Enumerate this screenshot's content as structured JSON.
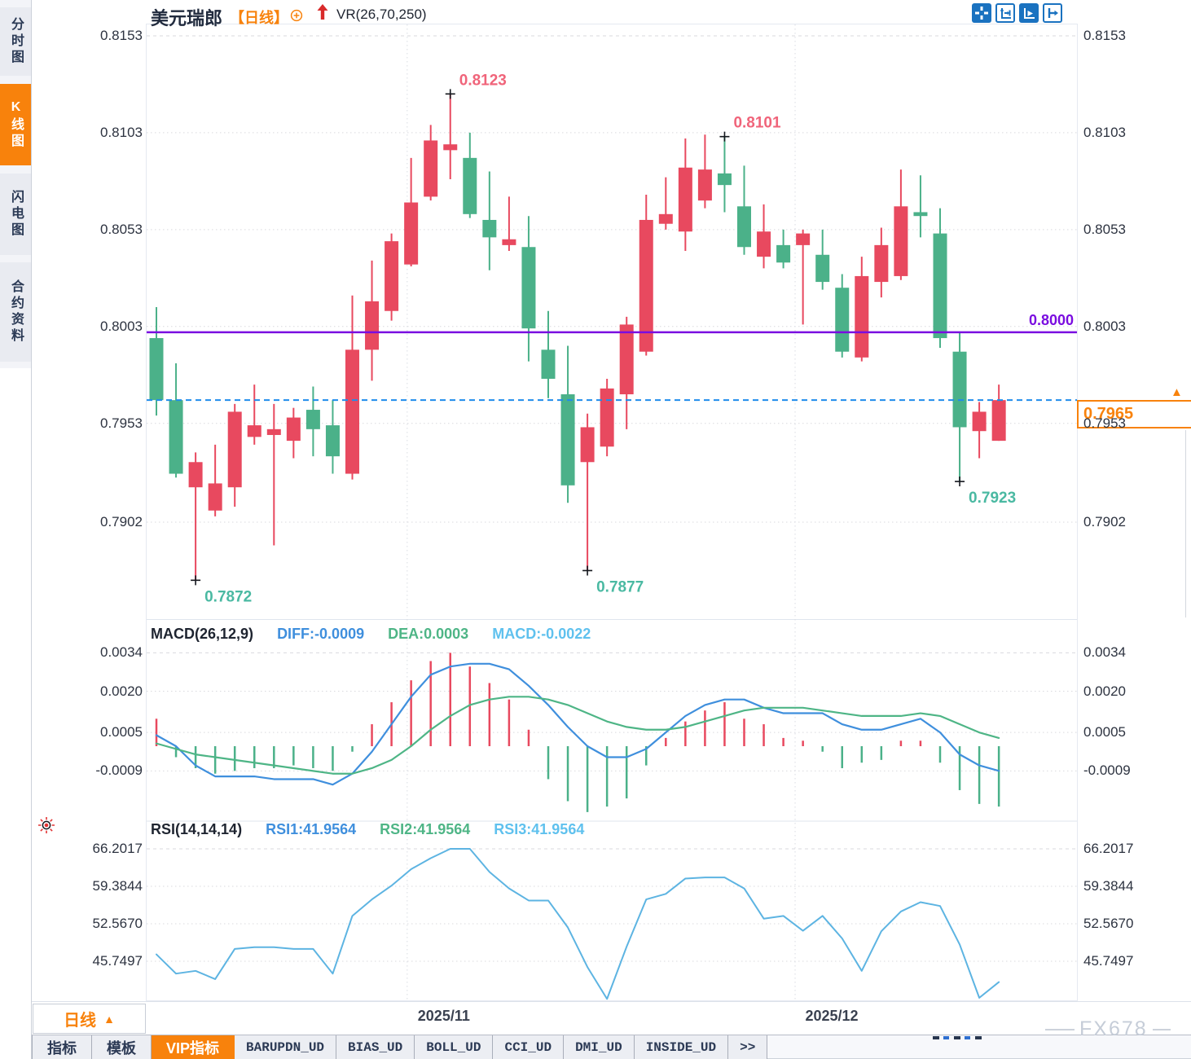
{
  "app": {
    "watermark": "FX678"
  },
  "sidebar": {
    "items": [
      {
        "id": "time-share-chart",
        "label": "分时图",
        "active": false
      },
      {
        "id": "kline-chart",
        "label": "K线图",
        "active": true
      },
      {
        "id": "lightning-chart",
        "label": "闪电图",
        "active": false
      },
      {
        "id": "contract-info",
        "label": "合约资料",
        "active": false
      }
    ]
  },
  "header": {
    "symbol": "美元瑞郎",
    "period_tag": "【日线】",
    "indicator_label": "VR(26,70,250)"
  },
  "toolbar_icons": [
    "move-crosshair",
    "axis-scale",
    "axis-play",
    "pan-right"
  ],
  "price_panel": {
    "y_ticks": [
      "0.8153",
      "0.8103",
      "0.8053",
      "0.8003",
      "0.7953",
      "0.7902"
    ],
    "hline_label": "0.8000",
    "current_price": "0.7965"
  },
  "macd_panel": {
    "title": "MACD(26,12,9)",
    "diff_label": "DIFF:-0.0009",
    "dea_label": "DEA:0.0003",
    "macd_label": "MACD:-0.0022",
    "y_ticks": [
      "0.0034",
      "0.0020",
      "0.0005",
      "-0.0009"
    ]
  },
  "rsi_panel": {
    "title": "RSI(14,14,14)",
    "rsi1_label": "RSI1:41.9564",
    "rsi2_label": "RSI2:41.9564",
    "rsi3_label": "RSI3:41.9564",
    "y_ticks": [
      "66.2017",
      "59.3844",
      "52.5670",
      "45.7497"
    ]
  },
  "timeline": {
    "period_label": "日线",
    "months": [
      "2025/11",
      "2025/12"
    ]
  },
  "bottom_tabs": {
    "items": [
      {
        "label": "指标",
        "active": false
      },
      {
        "label": "模板",
        "active": false
      },
      {
        "label": "VIP指标",
        "active": true
      },
      {
        "label": "BARUPDN_UD",
        "active": false
      },
      {
        "label": "BIAS_UD",
        "active": false
      },
      {
        "label": "BOLL_UD",
        "active": false
      },
      {
        "label": "CCI_UD",
        "active": false
      },
      {
        "label": "DMI_UD",
        "active": false
      },
      {
        "label": "INSIDE_UD",
        "active": false
      },
      {
        "label": ">>",
        "active": false
      }
    ]
  },
  "colors": {
    "up": "#e8495f",
    "down": "#4bb189",
    "purple_line": "#7a0ce0",
    "dashed_line": "#1f8ceb",
    "accent_orange": "#f8820c",
    "diff_line": "#3f8fdd",
    "dea_line": "#4eb586",
    "rsi_line": "#5db4e2",
    "marker_high": "#f0647a",
    "marker_low": "#4ab9a2",
    "toolbar_blue": "#1a72c0"
  },
  "chart_data": [
    {
      "type": "candlestick",
      "title": "美元瑞郎 日线",
      "convention": "red=up, green=down (CN convention)",
      "y_ticks": [
        0.8153,
        0.8103,
        0.8053,
        0.8003,
        0.7953,
        0.7902
      ],
      "hlines": [
        {
          "value": 0.8,
          "style": "solid",
          "color": "#7a0ce0",
          "label": "0.8000"
        },
        {
          "value": 0.7965,
          "style": "dashed",
          "color": "#1f8ceb",
          "label": "0.7965"
        }
      ],
      "x_month_gridlines": [
        {
          "label": "2025/11",
          "index": 12.8
        },
        {
          "label": "2025/12",
          "index": 32.6
        }
      ],
      "markers": [
        {
          "index": 2,
          "price": 0.7872,
          "kind": "low",
          "label": "0.7872"
        },
        {
          "index": 15,
          "price": 0.8123,
          "kind": "high",
          "label": "0.8123"
        },
        {
          "index": 22,
          "price": 0.7877,
          "kind": "low",
          "label": "0.7877"
        },
        {
          "index": 29,
          "price": 0.8101,
          "kind": "high",
          "label": "0.8101"
        },
        {
          "index": 41,
          "price": 0.7923,
          "kind": "low",
          "label": "0.7923"
        }
      ],
      "ohlc": [
        [
          0.7997,
          0.8013,
          0.7957,
          0.7965
        ],
        [
          0.7965,
          0.7984,
          0.7925,
          0.7927
        ],
        [
          0.792,
          0.7938,
          0.7872,
          0.7933
        ],
        [
          0.7908,
          0.7942,
          0.7905,
          0.7922
        ],
        [
          0.792,
          0.7963,
          0.791,
          0.7959
        ],
        [
          0.7946,
          0.7973,
          0.7942,
          0.7952
        ],
        [
          0.7947,
          0.7963,
          0.789,
          0.795
        ],
        [
          0.7944,
          0.7961,
          0.7935,
          0.7956
        ],
        [
          0.796,
          0.7972,
          0.7936,
          0.795
        ],
        [
          0.7952,
          0.7965,
          0.7927,
          0.7936
        ],
        [
          0.7927,
          0.8019,
          0.7924,
          0.7991
        ],
        [
          0.7991,
          0.8037,
          0.7975,
          0.8016
        ],
        [
          0.8011,
          0.8051,
          0.8006,
          0.8047
        ],
        [
          0.8035,
          0.809,
          0.8034,
          0.8067
        ],
        [
          0.807,
          0.8107,
          0.8068,
          0.8099
        ],
        [
          0.8094,
          0.8123,
          0.8079,
          0.8097
        ],
        [
          0.809,
          0.8103,
          0.8059,
          0.8061
        ],
        [
          0.8058,
          0.8083,
          0.8032,
          0.8049
        ],
        [
          0.8045,
          0.807,
          0.8042,
          0.8048
        ],
        [
          0.8044,
          0.806,
          0.7985,
          0.8002
        ],
        [
          0.7991,
          0.8011,
          0.7966,
          0.7976
        ],
        [
          0.7968,
          0.7993,
          0.7912,
          0.7921
        ],
        [
          0.7933,
          0.7958,
          0.7877,
          0.7951
        ],
        [
          0.7941,
          0.7976,
          0.7936,
          0.7971
        ],
        [
          0.7968,
          0.8008,
          0.795,
          0.8004
        ],
        [
          0.799,
          0.8071,
          0.7988,
          0.8058
        ],
        [
          0.8056,
          0.808,
          0.8053,
          0.8061
        ],
        [
          0.8052,
          0.81,
          0.8042,
          0.8085
        ],
        [
          0.8068,
          0.8102,
          0.8064,
          0.8084
        ],
        [
          0.8082,
          0.8101,
          0.8062,
          0.8076
        ],
        [
          0.8065,
          0.8086,
          0.804,
          0.8044
        ],
        [
          0.8039,
          0.8066,
          0.8033,
          0.8052
        ],
        [
          0.8045,
          0.8053,
          0.8033,
          0.8036
        ],
        [
          0.8045,
          0.8053,
          0.8004,
          0.8051
        ],
        [
          0.804,
          0.8053,
          0.8022,
          0.8026
        ],
        [
          0.8023,
          0.803,
          0.7987,
          0.799
        ],
        [
          0.7987,
          0.8039,
          0.7985,
          0.8029
        ],
        [
          0.8026,
          0.8054,
          0.8018,
          0.8045
        ],
        [
          0.8029,
          0.8084,
          0.8027,
          0.8065
        ],
        [
          0.8062,
          0.8081,
          0.8049,
          0.806
        ],
        [
          0.8051,
          0.8064,
          0.7992,
          0.7997
        ],
        [
          0.799,
          0.8,
          0.7923,
          0.7951
        ],
        [
          0.7949,
          0.7964,
          0.7935,
          0.7959
        ],
        [
          0.7944,
          0.7973,
          0.7944,
          0.7965
        ]
      ]
    },
    {
      "type": "macd",
      "y_ticks": [
        0.0034,
        0.002,
        0.0005,
        -0.0009
      ],
      "histogram": [
        0.001,
        -0.0004,
        -0.0008,
        -0.001,
        -0.0009,
        -0.0008,
        -0.0008,
        -0.0007,
        -0.0008,
        -0.0009,
        -0.0002,
        0.0008,
        0.0016,
        0.0024,
        0.0031,
        0.0034,
        0.0029,
        0.0023,
        0.0017,
        0.0006,
        -0.0012,
        -0.002,
        -0.0024,
        -0.0022,
        -0.0019,
        -0.0007,
        0.0003,
        0.0009,
        0.0013,
        0.0016,
        0.001,
        0.0008,
        0.0003,
        0.0002,
        -0.0002,
        -0.0008,
        -0.0006,
        -0.0005,
        0.0002,
        0.0002,
        -0.0006,
        -0.0016,
        -0.0021,
        -0.0022
      ],
      "diff": [
        0.0004,
        0.0,
        -0.0007,
        -0.0011,
        -0.0011,
        -0.0011,
        -0.0012,
        -0.0012,
        -0.0012,
        -0.0014,
        -0.001,
        -0.0002,
        0.0008,
        0.0018,
        0.0026,
        0.0029,
        0.003,
        0.003,
        0.0028,
        0.0022,
        0.0015,
        0.0007,
        0.0,
        -0.0004,
        -0.0004,
        -0.0001,
        0.0005,
        0.0011,
        0.0015,
        0.0017,
        0.0017,
        0.0014,
        0.0012,
        0.0012,
        0.0012,
        0.0008,
        0.0006,
        0.0006,
        0.0008,
        0.001,
        0.0005,
        -0.0003,
        -0.0007,
        -0.0009
      ],
      "dea": [
        0.0001,
        -0.0001,
        -0.0003,
        -0.0004,
        -0.0005,
        -0.0006,
        -0.0007,
        -0.0008,
        -0.0009,
        -0.001,
        -0.001,
        -0.0008,
        -0.0005,
        0.0,
        0.0006,
        0.0011,
        0.0015,
        0.0017,
        0.0018,
        0.0018,
        0.0017,
        0.0015,
        0.0012,
        0.0009,
        0.0007,
        0.0006,
        0.0006,
        0.0007,
        0.0009,
        0.0011,
        0.0013,
        0.0014,
        0.0014,
        0.0014,
        0.0013,
        0.0012,
        0.0011,
        0.0011,
        0.0011,
        0.0012,
        0.0011,
        0.0008,
        0.0005,
        0.0003
      ]
    },
    {
      "type": "line",
      "name": "RSI",
      "y_ticks": [
        66.2017,
        59.3844,
        52.567,
        45.7497
      ],
      "values": [
        47,
        43.5,
        44,
        42.5,
        48,
        48.3,
        48.3,
        48,
        48,
        43.5,
        54,
        57,
        59.5,
        62.5,
        64.5,
        66.2,
        66.2,
        62,
        59,
        56.8,
        56.8,
        51.9,
        44.7,
        38.9,
        48.4,
        57,
        58,
        60.8,
        61,
        61,
        59,
        53.5,
        54,
        51.3,
        54,
        49.9,
        44,
        51.2,
        54.8,
        56.5,
        55.8,
        48.8,
        39.1,
        41.96
      ]
    }
  ]
}
